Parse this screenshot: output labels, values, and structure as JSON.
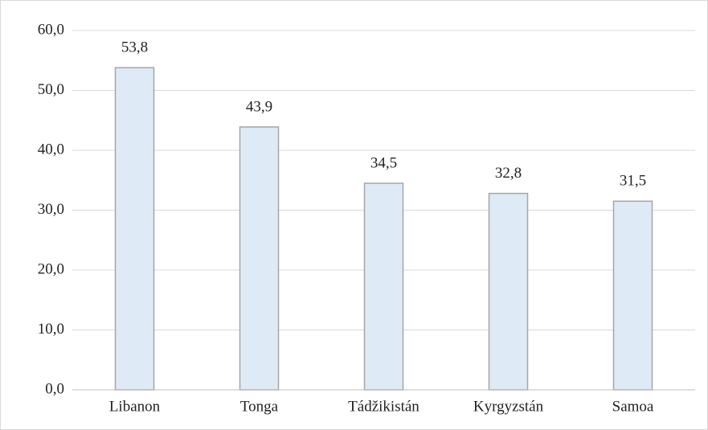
{
  "chart_data": {
    "type": "bar",
    "categories": [
      "Libanon",
      "Tonga",
      "Tádžikistán",
      "Kyrgyzstán",
      "Samoa"
    ],
    "values": [
      53.8,
      43.9,
      34.5,
      32.8,
      31.5
    ],
    "value_labels": [
      "53,8",
      "43,9",
      "34,5",
      "32,8",
      "31,5"
    ],
    "color": "#deeaf6",
    "ylim": [
      0,
      60
    ],
    "yticks": [
      {
        "value": 0,
        "label": "0,0"
      },
      {
        "value": 10,
        "label": "10,0"
      },
      {
        "value": 20,
        "label": "20,0"
      },
      {
        "value": 30,
        "label": "30,0"
      },
      {
        "value": 40,
        "label": "40,0"
      },
      {
        "value": 50,
        "label": "50,0"
      },
      {
        "value": 60,
        "label": "60,0"
      }
    ],
    "grid": true
  }
}
